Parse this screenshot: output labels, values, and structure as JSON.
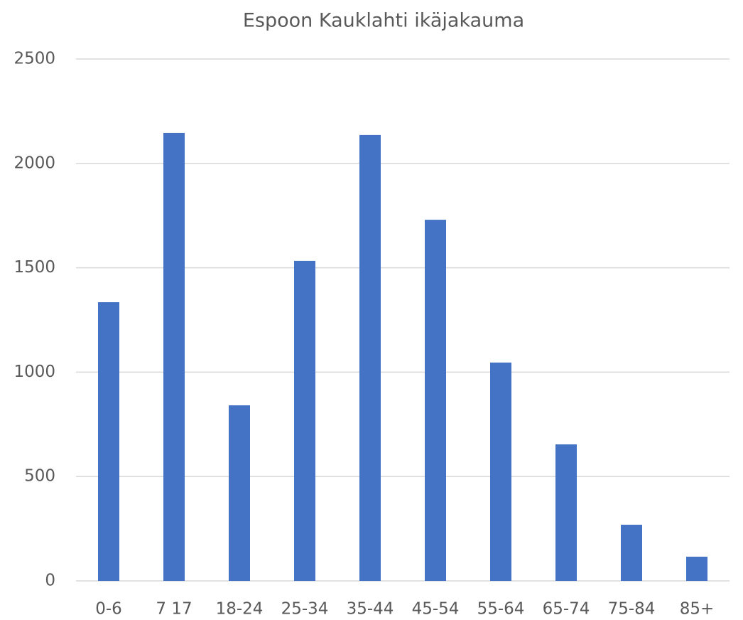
{
  "chart_data": {
    "type": "bar",
    "title": "Espoon Kauklahti ikäjakauma",
    "categories": [
      "0-6",
      "7 17",
      "18-24",
      "25-34",
      "35-44",
      "45-54",
      "55-64",
      "65-74",
      "75-84",
      "85+"
    ],
    "values": [
      1335,
      2146,
      841,
      1533,
      2136,
      1730,
      1046,
      654,
      269,
      116
    ],
    "color": "#4472c4",
    "ylim": [
      0,
      2500
    ],
    "yticks": [
      0,
      500,
      1000,
      1500,
      2000,
      2500
    ],
    "grid": true
  }
}
